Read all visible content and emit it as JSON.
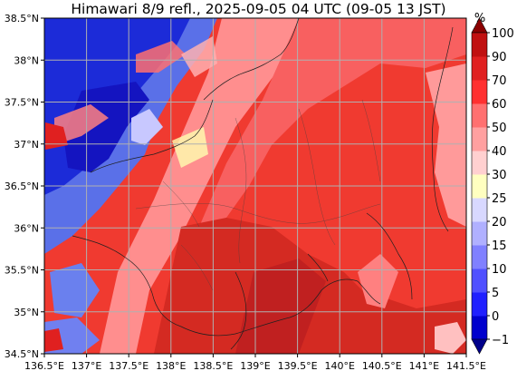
{
  "title": "Himawari 8/9 refl., 2025-09-05 04 UTC (09-05 13 JST)",
  "map": {
    "lon_range": [
      136.5,
      141.5
    ],
    "lat_range": [
      34.5,
      38.5
    ],
    "lon_ticks": [
      "136.5°E",
      "137°E",
      "137.5°E",
      "138°E",
      "138.5°E",
      "139°E",
      "139.5°E",
      "140°E",
      "140.5°E",
      "141°E",
      "141.5°E"
    ],
    "lat_ticks": [
      "34.5°N",
      "35°N",
      "35.5°N",
      "36°N",
      "36.5°N",
      "37°N",
      "37.5°N",
      "38°N",
      "38.5°N"
    ],
    "grid": true
  },
  "colorbar": {
    "unit": "%",
    "levels": [
      "−1",
      "0",
      "5",
      "10",
      "15",
      "20",
      "25",
      "30",
      "40",
      "50",
      "60",
      "70",
      "90",
      "100"
    ],
    "colors": [
      "#00008b",
      "#0000cd",
      "#2020ff",
      "#5050ff",
      "#8080ff",
      "#b0b0ff",
      "#d8d8ff",
      "#ffffc0",
      "#ffd0d0",
      "#ffa0a0",
      "#ff7070",
      "#ff3030",
      "#e02020",
      "#c01010",
      "#8b0000"
    ]
  },
  "colors": {
    "cloud_red": "#f03a30",
    "cloud_dark": "#d42a22",
    "cloud_light": "#ff8a8a",
    "clear_blue": "#1c2bd8",
    "clear_mid": "#5a70e8"
  }
}
